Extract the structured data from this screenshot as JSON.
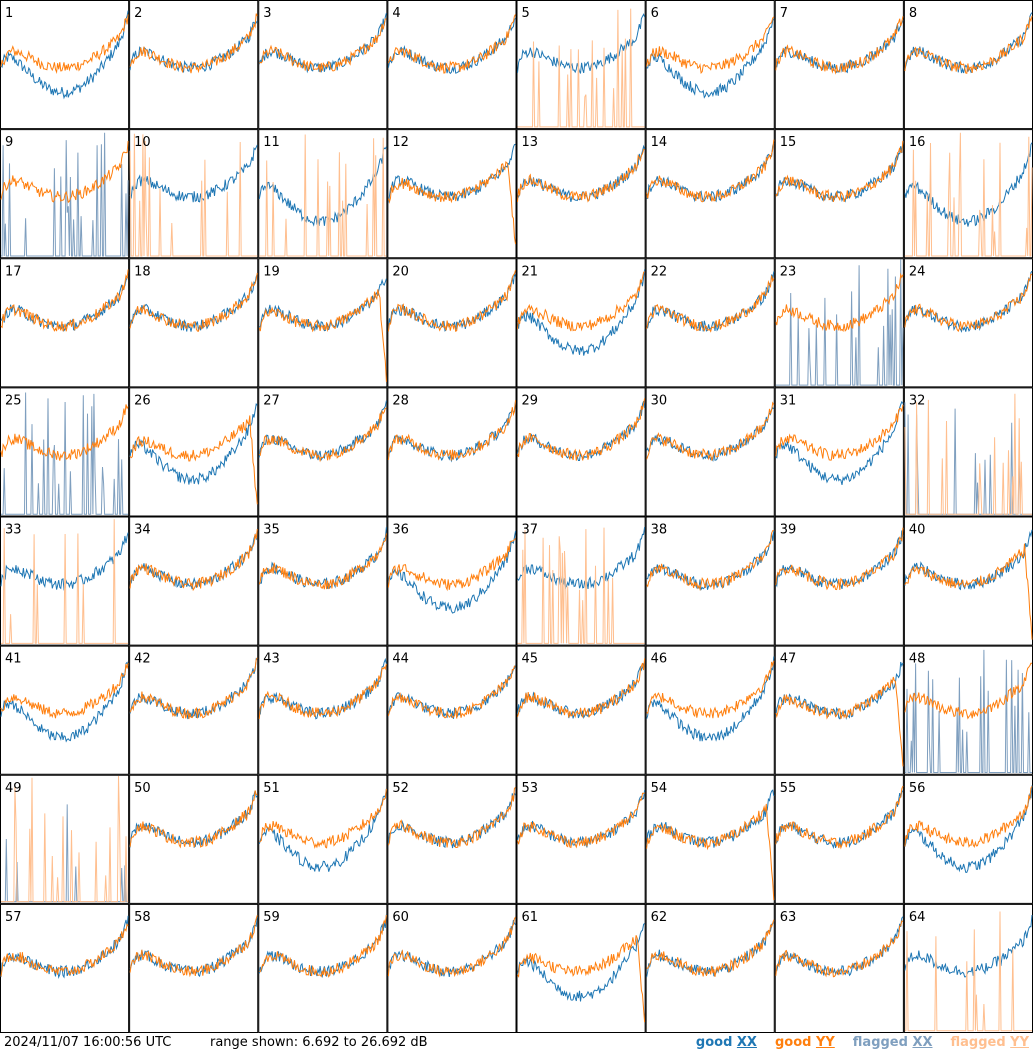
{
  "footer": {
    "timestamp": "2024/11/07 16:00:56 UTC",
    "range_text": "range shown: 6.692 to 26.692 dB"
  },
  "legend": [
    {
      "prefix": "good ",
      "pol": "XX",
      "color": "#1f77b4"
    },
    {
      "prefix": "good ",
      "pol": "YY",
      "color": "#ff7f0e"
    },
    {
      "prefix": "flagged ",
      "pol": "XX",
      "color": "#7f9fbf"
    },
    {
      "prefix": "flagged ",
      "pol": "YY",
      "color": "#ffbf8f"
    }
  ],
  "colors": {
    "good_xx": "#1f77b4",
    "good_yy": "#ff7f0e",
    "flagged_xx": "#7f9fbf",
    "flagged_yy": "#ffbf8f"
  },
  "chart_data": {
    "type": "line",
    "ylim": [
      6.692,
      26.692
    ],
    "ylabel": "dB",
    "layout": "8x8 small multiples",
    "panels": [
      {
        "id": "1",
        "xx": "good",
        "yy": "good"
      },
      {
        "id": "2",
        "xx": "good",
        "yy": "good"
      },
      {
        "id": "3",
        "xx": "good",
        "yy": "good"
      },
      {
        "id": "4",
        "xx": "good",
        "yy": "good"
      },
      {
        "id": "5",
        "xx": "good",
        "yy": "flagged"
      },
      {
        "id": "6",
        "xx": "good",
        "yy": "good"
      },
      {
        "id": "7",
        "xx": "good",
        "yy": "good"
      },
      {
        "id": "8",
        "xx": "good",
        "yy": "good"
      },
      {
        "id": "9",
        "xx": "flagged",
        "yy": "good"
      },
      {
        "id": "10",
        "xx": "good",
        "yy": "flagged"
      },
      {
        "id": "11",
        "xx": "good",
        "yy": "flagged"
      },
      {
        "id": "12",
        "xx": "good",
        "yy": "good"
      },
      {
        "id": "13",
        "xx": "good",
        "yy": "good"
      },
      {
        "id": "14",
        "xx": "good",
        "yy": "good"
      },
      {
        "id": "15",
        "xx": "good",
        "yy": "good"
      },
      {
        "id": "16",
        "xx": "good",
        "yy": "flagged"
      },
      {
        "id": "17",
        "xx": "good",
        "yy": "good"
      },
      {
        "id": "18",
        "xx": "good",
        "yy": "good"
      },
      {
        "id": "19",
        "xx": "good",
        "yy": "good"
      },
      {
        "id": "20",
        "xx": "good",
        "yy": "good"
      },
      {
        "id": "21",
        "xx": "good",
        "yy": "good"
      },
      {
        "id": "22",
        "xx": "good",
        "yy": "good"
      },
      {
        "id": "23",
        "xx": "flagged",
        "yy": "good"
      },
      {
        "id": "24",
        "xx": "good",
        "yy": "good"
      },
      {
        "id": "25",
        "xx": "flagged",
        "yy": "good"
      },
      {
        "id": "26",
        "xx": "good",
        "yy": "good"
      },
      {
        "id": "27",
        "xx": "good",
        "yy": "good"
      },
      {
        "id": "28",
        "xx": "good",
        "yy": "good"
      },
      {
        "id": "29",
        "xx": "good",
        "yy": "good"
      },
      {
        "id": "30",
        "xx": "good",
        "yy": "good"
      },
      {
        "id": "31",
        "xx": "good",
        "yy": "good"
      },
      {
        "id": "32",
        "xx": "flagged",
        "yy": "flagged"
      },
      {
        "id": "33",
        "xx": "good",
        "yy": "flagged"
      },
      {
        "id": "34",
        "xx": "good",
        "yy": "good"
      },
      {
        "id": "35",
        "xx": "good",
        "yy": "good"
      },
      {
        "id": "36",
        "xx": "good",
        "yy": "good"
      },
      {
        "id": "37",
        "xx": "good",
        "yy": "flagged"
      },
      {
        "id": "38",
        "xx": "good",
        "yy": "good"
      },
      {
        "id": "39",
        "xx": "good",
        "yy": "good"
      },
      {
        "id": "40",
        "xx": "good",
        "yy": "good"
      },
      {
        "id": "41",
        "xx": "good",
        "yy": "good"
      },
      {
        "id": "42",
        "xx": "good",
        "yy": "good"
      },
      {
        "id": "43",
        "xx": "good",
        "yy": "good"
      },
      {
        "id": "44",
        "xx": "good",
        "yy": "good"
      },
      {
        "id": "45",
        "xx": "good",
        "yy": "good"
      },
      {
        "id": "46",
        "xx": "good",
        "yy": "good"
      },
      {
        "id": "47",
        "xx": "good",
        "yy": "good"
      },
      {
        "id": "48",
        "xx": "flagged",
        "yy": "good"
      },
      {
        "id": "49",
        "xx": "flagged",
        "yy": "flagged"
      },
      {
        "id": "50",
        "xx": "good",
        "yy": "good"
      },
      {
        "id": "51",
        "xx": "good",
        "yy": "good"
      },
      {
        "id": "52",
        "xx": "good",
        "yy": "good"
      },
      {
        "id": "53",
        "xx": "good",
        "yy": "good"
      },
      {
        "id": "54",
        "xx": "good",
        "yy": "good"
      },
      {
        "id": "55",
        "xx": "good",
        "yy": "good"
      },
      {
        "id": "56",
        "xx": "good",
        "yy": "good"
      },
      {
        "id": "57",
        "xx": "good",
        "yy": "good"
      },
      {
        "id": "58",
        "xx": "good",
        "yy": "good"
      },
      {
        "id": "59",
        "xx": "good",
        "yy": "good"
      },
      {
        "id": "60",
        "xx": "good",
        "yy": "good"
      },
      {
        "id": "61",
        "xx": "good",
        "yy": "good"
      },
      {
        "id": "62",
        "xx": "good",
        "yy": "good"
      },
      {
        "id": "63",
        "xx": "good",
        "yy": "good"
      },
      {
        "id": "64",
        "xx": "good",
        "yy": "flagged"
      }
    ]
  }
}
